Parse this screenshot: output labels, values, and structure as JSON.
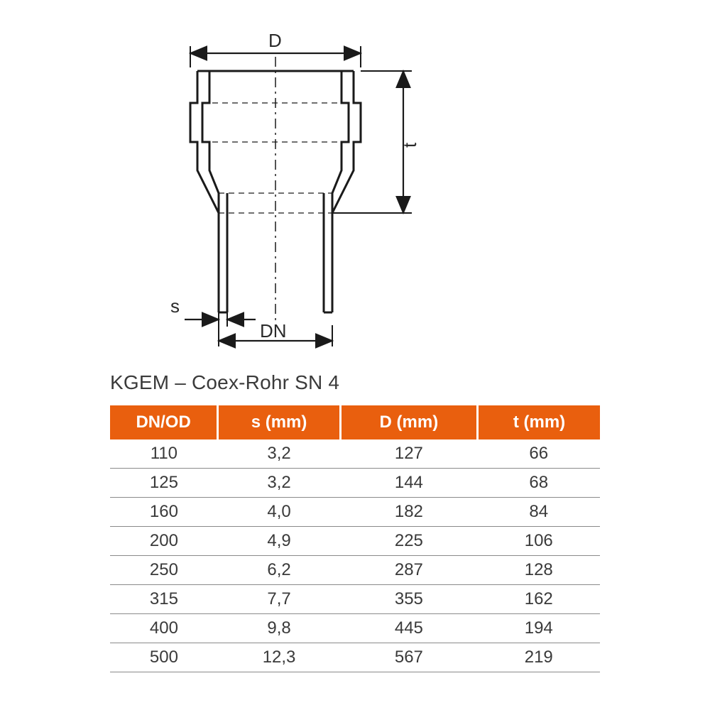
{
  "diagram": {
    "labels": {
      "D": "D",
      "t": "t",
      "s": "s",
      "DN": "DN"
    },
    "stroke": "#1a1a1a",
    "stroke_width_main": 3,
    "stroke_width_dim": 2.2,
    "dash": "8,6"
  },
  "title": "KGEM – Coex-Rohr SN 4",
  "table": {
    "header_bg": "#e95f0e",
    "header_fg": "#ffffff",
    "row_border": "#8a8a8a",
    "text_color": "#3a3a3a",
    "columns": [
      "DN/OD",
      "s (mm)",
      "D (mm)",
      "t (mm)"
    ],
    "col_widths_pct": [
      22,
      25,
      28,
      25
    ],
    "rows": [
      [
        "110",
        "3,2",
        "127",
        "66"
      ],
      [
        "125",
        "3,2",
        "144",
        "68"
      ],
      [
        "160",
        "4,0",
        "182",
        "84"
      ],
      [
        "200",
        "4,9",
        "225",
        "106"
      ],
      [
        "250",
        "6,2",
        "287",
        "128"
      ],
      [
        "315",
        "7,7",
        "355",
        "162"
      ],
      [
        "400",
        "9,8",
        "445",
        "194"
      ],
      [
        "500",
        "12,3",
        "567",
        "219"
      ]
    ]
  }
}
